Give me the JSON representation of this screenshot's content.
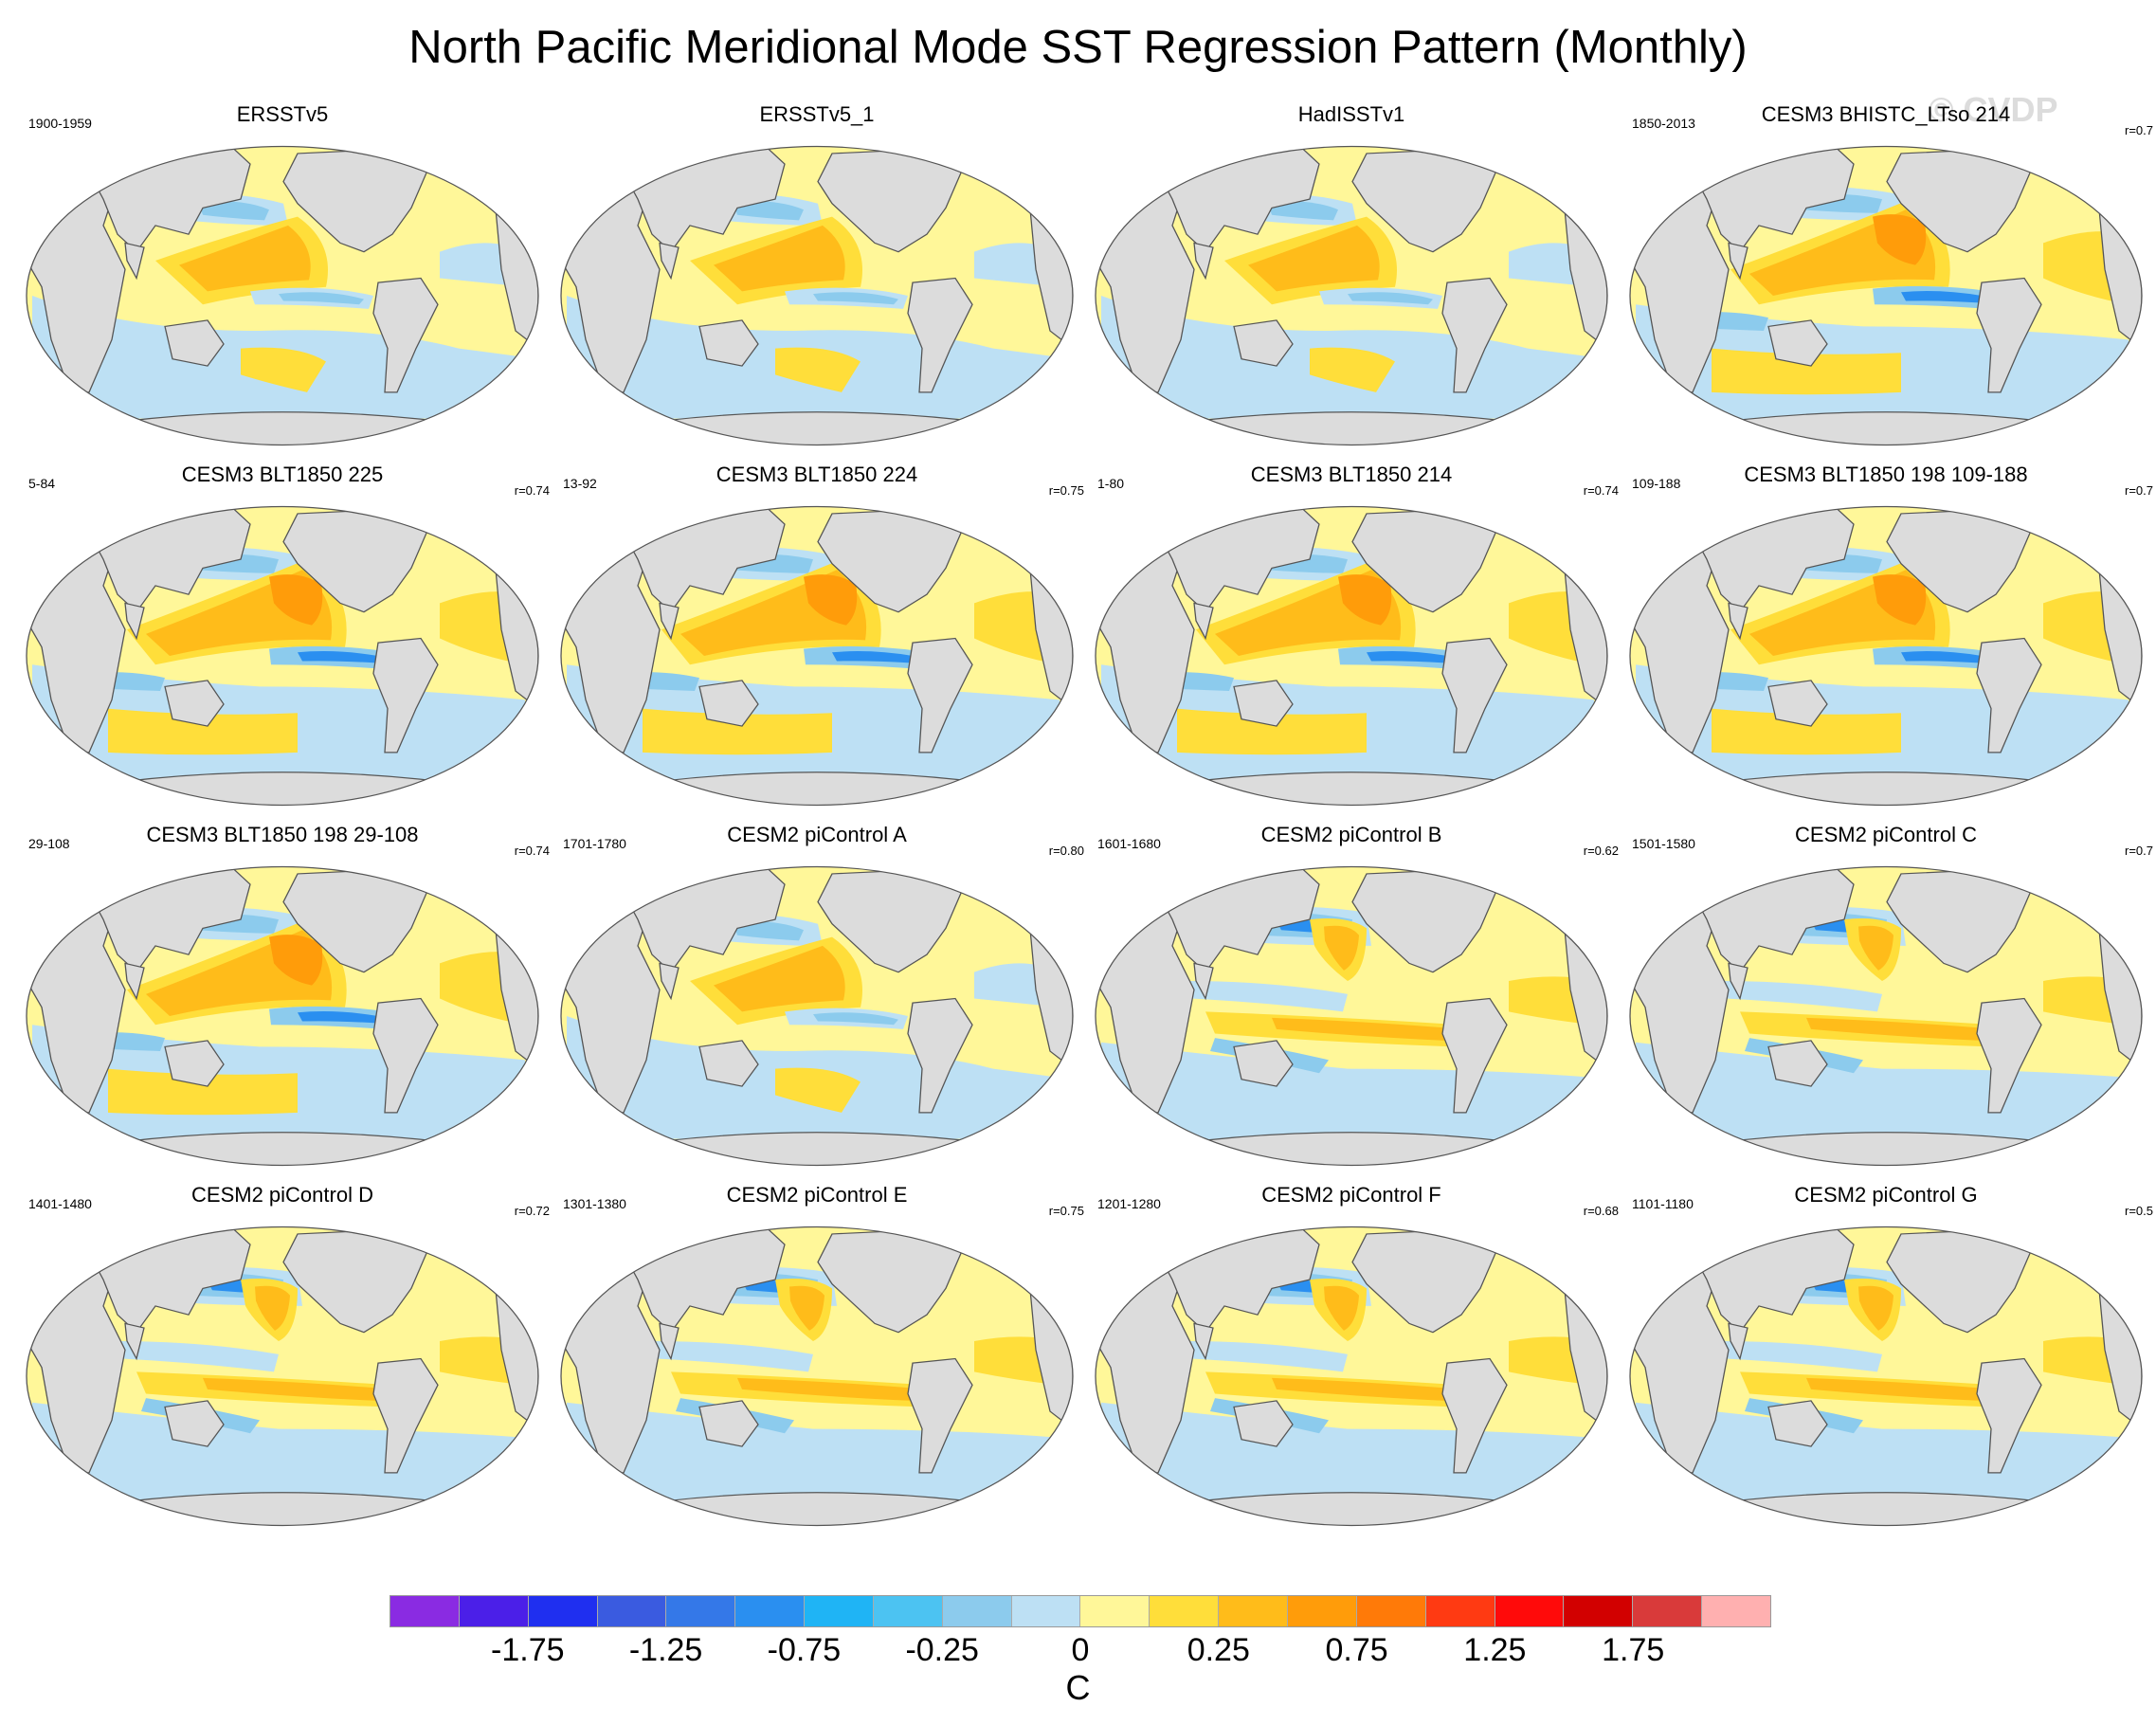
{
  "title": "North Pacific Meridional Mode SST Regression Pattern (Monthly)",
  "watermark": "© CVDP",
  "panels": [
    {
      "title": "ERSSTv5",
      "years": "1900-1959",
      "corr": "",
      "variant": 0
    },
    {
      "title": "ERSSTv5_1",
      "years": "",
      "corr": "",
      "variant": 1
    },
    {
      "title": "HadISSTv1",
      "years": "",
      "corr": "",
      "variant": 1
    },
    {
      "title": "CESM3 BHISTC_LTso 214",
      "years": "1850-2013",
      "corr": "r=0.7",
      "variant": 2
    },
    {
      "title": "CESM3 BLT1850 225",
      "years": "5-84",
      "corr": "r=0.74",
      "variant": 2
    },
    {
      "title": "CESM3 BLT1850 224",
      "years": "13-92",
      "corr": "r=0.75",
      "variant": 2
    },
    {
      "title": "CESM3 BLT1850 214",
      "years": "1-80",
      "corr": "r=0.74",
      "variant": 2
    },
    {
      "title": "CESM3 BLT1850 198 109-188",
      "years": "109-188",
      "corr": "r=0.7",
      "variant": 2
    },
    {
      "title": "CESM3 BLT1850 198 29-108",
      "years": "29-108",
      "corr": "r=0.74",
      "variant": 2
    },
    {
      "title": "CESM2 piControl A",
      "years": "1701-1780",
      "corr": "r=0.80",
      "variant": 0
    },
    {
      "title": "CESM2 piControl B",
      "years": "1601-1680",
      "corr": "r=0.62",
      "variant": 3
    },
    {
      "title": "CESM2 piControl C",
      "years": "1501-1580",
      "corr": "r=0.7",
      "variant": 3
    },
    {
      "title": "CESM2 piControl D",
      "years": "1401-1480",
      "corr": "r=0.72",
      "variant": 3
    },
    {
      "title": "CESM2 piControl E",
      "years": "1301-1380",
      "corr": "r=0.75",
      "variant": 3
    },
    {
      "title": "CESM2 piControl F",
      "years": "1201-1280",
      "corr": "r=0.68",
      "variant": 3
    },
    {
      "title": "CESM2 piControl G",
      "years": "1101-1180",
      "corr": "r=0.5",
      "variant": 3
    }
  ],
  "colorbar": {
    "colors": [
      "#8a2be2",
      "#4b1fe8",
      "#1f2ff0",
      "#3a5be0",
      "#3478e8",
      "#2a8ff0",
      "#1fb4f5",
      "#4cc3f2",
      "#8ccbed",
      "#bde0f4",
      "#fff799",
      "#ffde3a",
      "#ffbc1a",
      "#ff9c0a",
      "#ff7a08",
      "#ff3a12",
      "#ff0a0a",
      "#d20000",
      "#d93a3a",
      "#ffb0b0"
    ],
    "tick_labels": [
      {
        "label": "-1.75",
        "boundary": 2
      },
      {
        "label": "-1.25",
        "boundary": 4
      },
      {
        "label": "-0.75",
        "boundary": 6
      },
      {
        "label": "-0.25",
        "boundary": 8
      },
      {
        "label": "0",
        "boundary": 10
      },
      {
        "label": "0.25",
        "boundary": 12
      },
      {
        "label": "0.75",
        "boundary": 14
      },
      {
        "label": "1.25",
        "boundary": 16
      },
      {
        "label": "1.75",
        "boundary": 18
      }
    ],
    "unit": "C"
  },
  "colors": {
    "ocean_base": "#fff799",
    "land": "#dcdcdc",
    "cool_light": "#bde0f4",
    "cool_mid": "#8ccbed",
    "cool_strong": "#2a8ff0",
    "warm_light": "#ffde3a",
    "warm_mid": "#ffbc1a",
    "warm_strong": "#ff9c0a"
  }
}
